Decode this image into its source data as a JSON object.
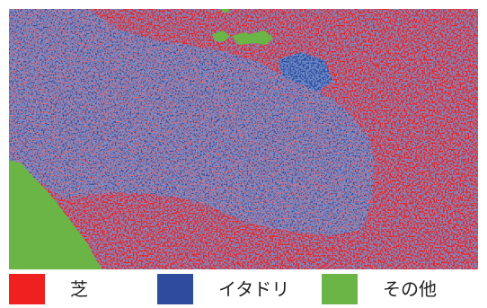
{
  "figure": {
    "legend": [
      {
        "label": "芝",
        "color": "#ee2020"
      },
      {
        "label": "イタドリ",
        "color": "#2e4b9e"
      },
      {
        "label": "その他",
        "color": "#6ab545"
      }
    ]
  }
}
